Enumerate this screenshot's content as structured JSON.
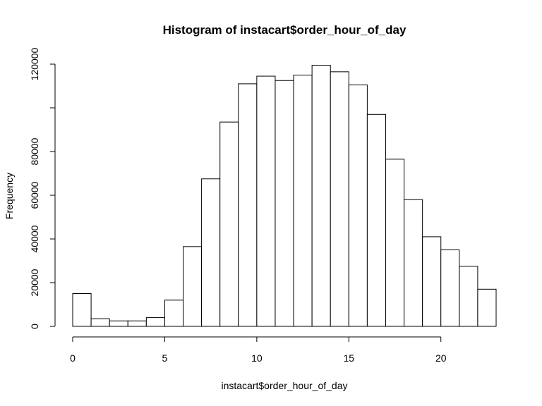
{
  "chart_data": {
    "type": "bar",
    "title": "Histogram of instacart$order_hour_of_day",
    "xlabel": "instacart$order_hour_of_day",
    "ylabel": "Frequency",
    "bin_edges": [
      0,
      1,
      2,
      3,
      4,
      5,
      6,
      7,
      8,
      9,
      10,
      11,
      12,
      13,
      14,
      15,
      16,
      17,
      18,
      19,
      20,
      21,
      22,
      23
    ],
    "values": [
      15000,
      3500,
      2500,
      2500,
      4000,
      12000,
      36500,
      67500,
      93500,
      111000,
      114500,
      112500,
      115000,
      119500,
      116500,
      110500,
      97000,
      76500,
      58000,
      41000,
      35000,
      27500,
      17000
    ],
    "xlim": [
      0,
      23
    ],
    "ylim": [
      0,
      120000
    ],
    "x_ticks": [
      0,
      5,
      10,
      15,
      20
    ],
    "x_tick_labels": [
      "0",
      "5",
      "10",
      "15",
      "20"
    ],
    "y_ticks": [
      0,
      20000,
      40000,
      60000,
      80000,
      100000,
      120000
    ],
    "y_tick_labels": [
      "0",
      "20000",
      "40000",
      "60000",
      "80000",
      "",
      "120000"
    ],
    "grid": false,
    "bar_fill": "#ffffff",
    "bar_stroke": "#000000"
  }
}
